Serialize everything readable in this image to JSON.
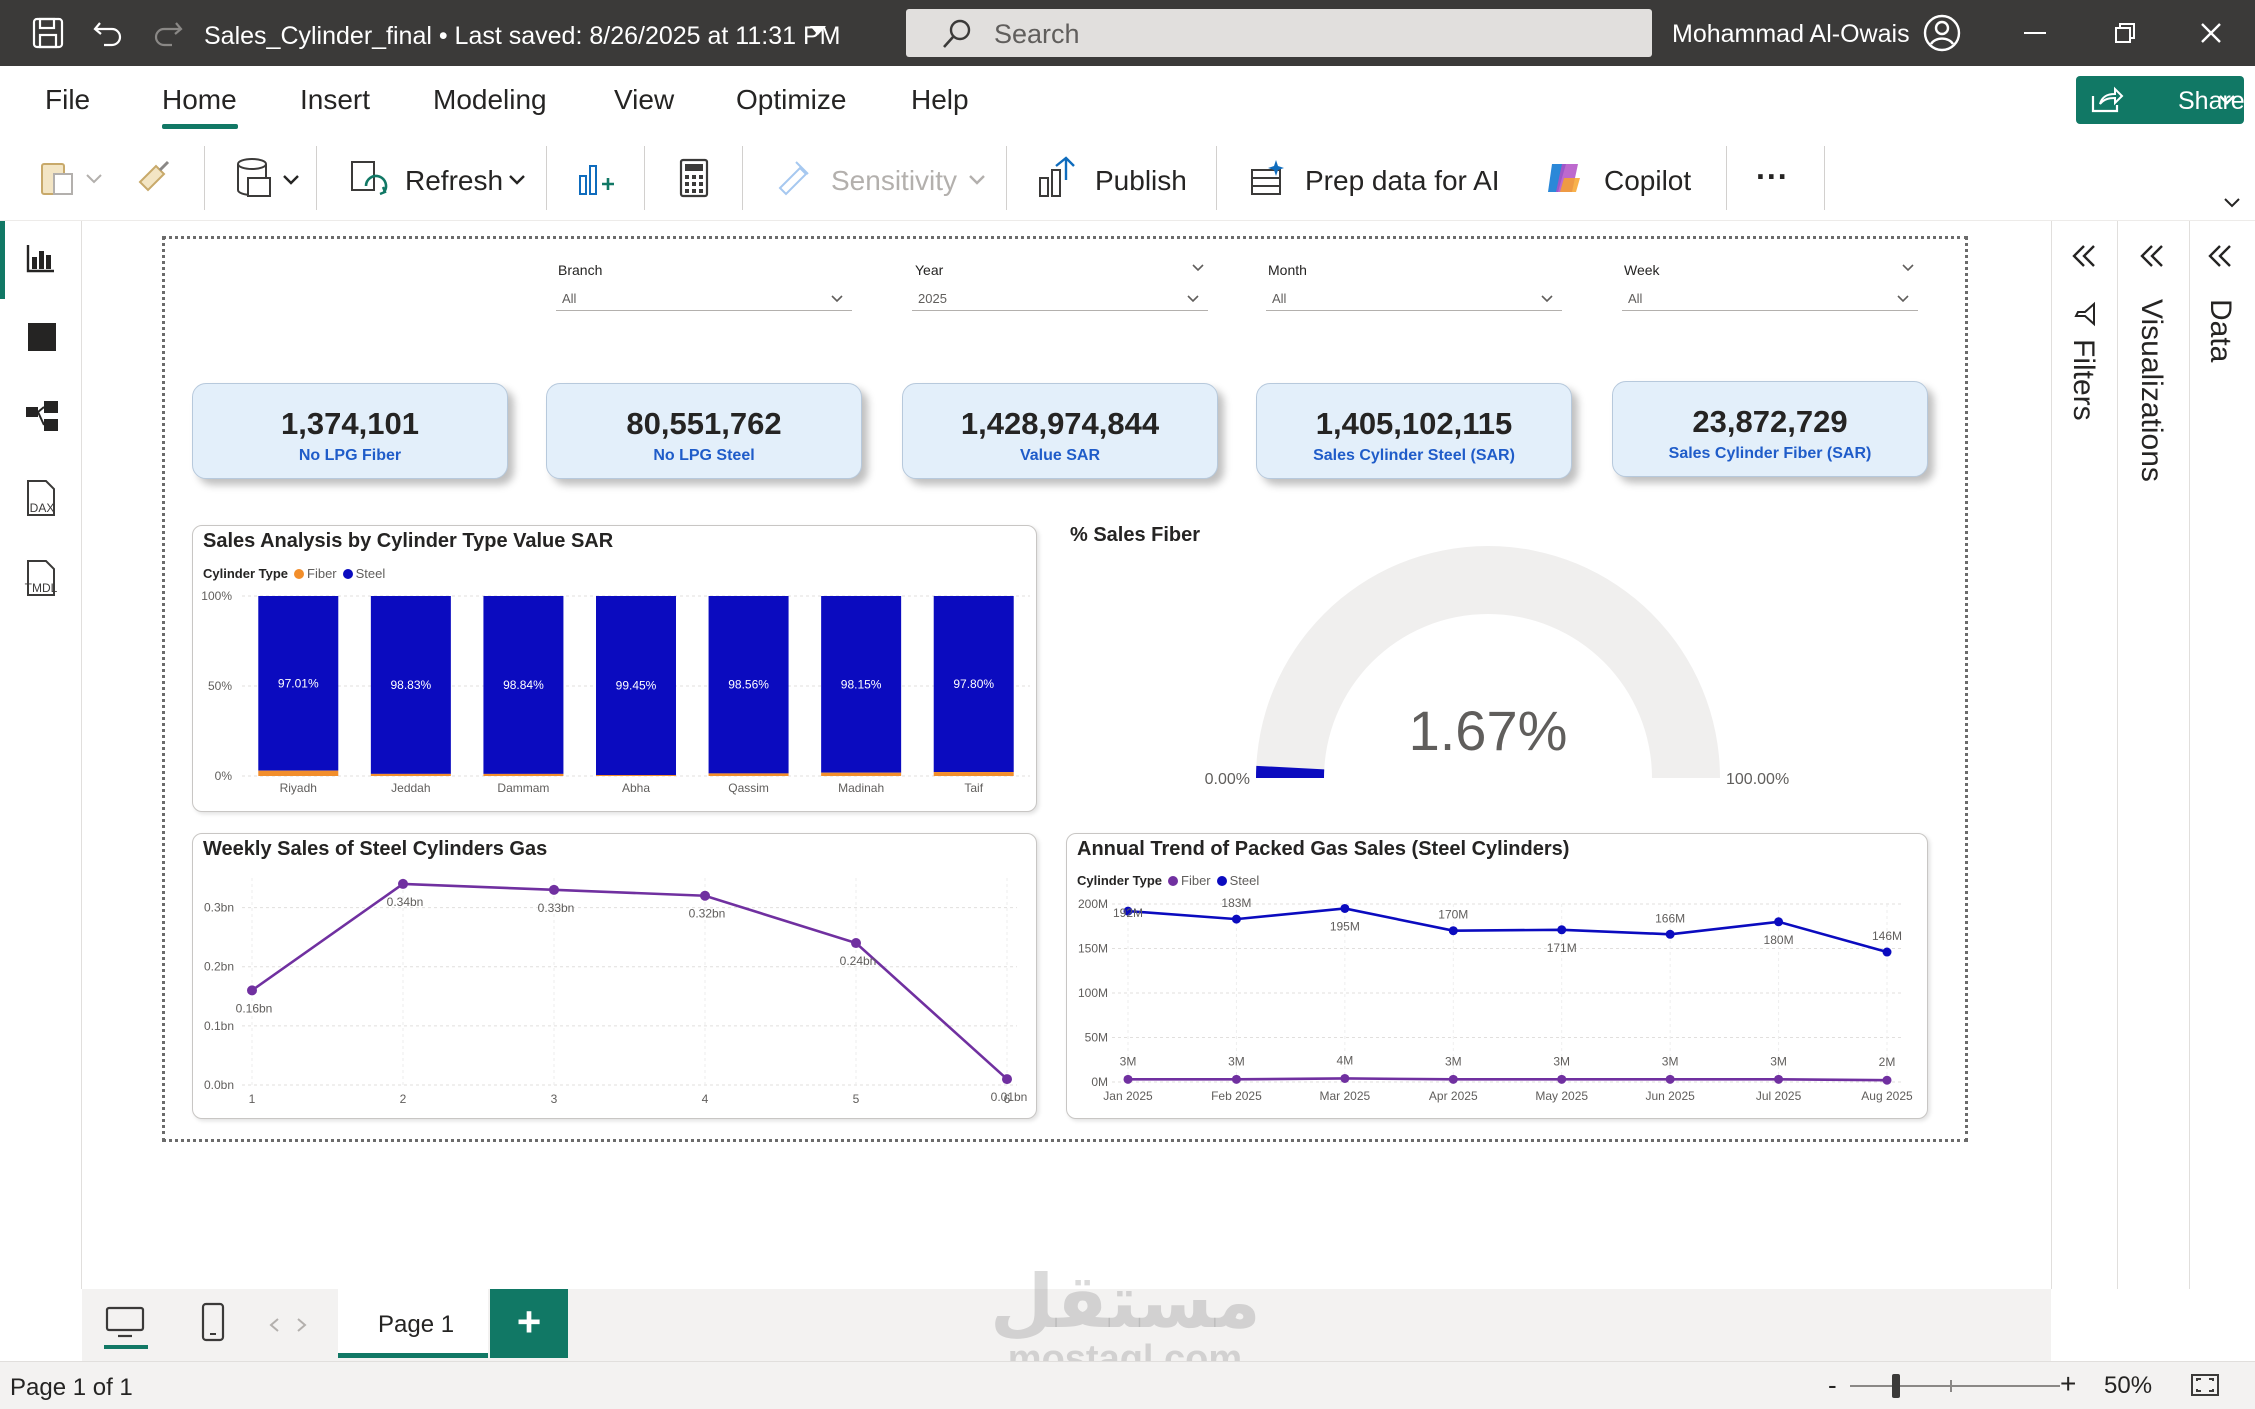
{
  "titlebar": {
    "doc_title": "Sales_Cylinder_final • Last saved: 8/26/2025 at 11:31 PM",
    "search_placeholder": "Search",
    "user_name": "Mohammad Al-Owais"
  },
  "menu": {
    "tabs": [
      "File",
      "Home",
      "Insert",
      "Modeling",
      "View",
      "Optimize",
      "Help"
    ],
    "active": "Home",
    "share_label": "Share"
  },
  "ribbon": {
    "refresh_label": "Refresh",
    "sensitivity_label": "Sensitivity",
    "publish_label": "Publish",
    "prep_label": "Prep data for AI",
    "copilot_label": "Copilot",
    "more_label": "..."
  },
  "leftnav": {
    "items": [
      "report-view",
      "table-view",
      "model-view",
      "DAX",
      "TMDL"
    ],
    "dax_label": "DAX",
    "tmdl_label": "TMDL"
  },
  "slicers": [
    {
      "label": "Branch",
      "value": "All"
    },
    {
      "label": "Year",
      "value": "2025"
    },
    {
      "label": "Month",
      "value": "All"
    },
    {
      "label": "Week",
      "value": "All"
    }
  ],
  "kpis": [
    {
      "value": "1,374,101",
      "label": "No LPG Fiber"
    },
    {
      "value": "80,551,762",
      "label": "No LPG Steel"
    },
    {
      "value": "1,428,974,844",
      "label": "Value SAR"
    },
    {
      "value": "1,405,102,115",
      "label": "Sales Cylinder Steel (SAR)"
    },
    {
      "value": "23,872,729",
      "label": "Sales Cylinder Fiber (SAR)"
    }
  ],
  "colors": {
    "accent": "#117865",
    "steel": "#0b0bbf",
    "fiber": "#f28e2b",
    "line_purple": "#7030a0",
    "kpi_bg": "#e3effa",
    "kpi_label": "#1f5cc9"
  },
  "chart_data": [
    {
      "type": "bar",
      "stacked": "100%",
      "title": "Sales Analysis by Cylinder Type Value SAR",
      "legend_title": "Cylinder Type",
      "legend_position": "top-left",
      "categories": [
        "Riyadh",
        "Jeddah",
        "Dammam",
        "Abha",
        "Qassim",
        "Madinah",
        "Taif"
      ],
      "series": [
        {
          "name": "Fiber",
          "values": [
            2.99,
            1.17,
            1.16,
            0.55,
            1.44,
            1.85,
            2.2
          ]
        },
        {
          "name": "Steel",
          "values": [
            97.01,
            98.83,
            98.84,
            99.45,
            98.56,
            98.15,
            97.8
          ]
        }
      ],
      "data_labels": [
        "97.01%",
        "98.83%",
        "98.84%",
        "99.45%",
        "98.56%",
        "98.15%",
        "97.80%"
      ],
      "y_ticks": [
        "0%",
        "50%",
        "100%"
      ],
      "ylim": [
        0,
        100
      ],
      "grid": true
    },
    {
      "type": "gauge",
      "title": "% Sales Fiber",
      "value": 1.67,
      "value_label": "1.67%",
      "min_label": "0.00%",
      "max_label": "100.00%",
      "range": [
        0,
        100
      ]
    },
    {
      "type": "line",
      "title": "Weekly Sales of Steel Cylinders Gas",
      "x": [
        "1",
        "2",
        "3",
        "4",
        "5",
        "6"
      ],
      "values": [
        0.16,
        0.34,
        0.33,
        0.32,
        0.24,
        0.01
      ],
      "data_labels": [
        "0.16bn",
        "0.34bn",
        "0.33bn",
        "0.32bn",
        "0.24bn",
        "0.01bn"
      ],
      "y_ticks": [
        "0.0bn",
        "0.1bn",
        "0.2bn",
        "0.3bn"
      ],
      "ylim": [
        0,
        0.35
      ],
      "grid": true
    },
    {
      "type": "line",
      "title": "Annual Trend of Packed Gas Sales (Steel Cylinders)",
      "legend_title": "Cylinder Type",
      "legend_position": "top-left",
      "categories": [
        "Jan 2025",
        "Feb 2025",
        "Mar 2025",
        "Apr 2025",
        "May 2025",
        "Jun 2025",
        "Jul 2025",
        "Aug 2025"
      ],
      "series": [
        {
          "name": "Fiber",
          "values": [
            3,
            3,
            4,
            3,
            3,
            3,
            3,
            2
          ],
          "labels": [
            "3M",
            "3M",
            "4M",
            "3M",
            "3M",
            "3M",
            "3M",
            "2M"
          ]
        },
        {
          "name": "Steel",
          "values": [
            192,
            183,
            195,
            170,
            171,
            166,
            180,
            146
          ],
          "labels": [
            "192M",
            "183M",
            "195M",
            "170M",
            "171M",
            "166M",
            "180M",
            "146M"
          ]
        }
      ],
      "y_ticks": [
        "0M",
        "50M",
        "100M",
        "150M",
        "200M"
      ],
      "ylim": [
        0,
        200
      ],
      "grid": true
    }
  ],
  "panes": {
    "filters": "Filters",
    "visualizations": "Visualizations",
    "data": "Data"
  },
  "pages": {
    "tabs": [
      "Page 1"
    ],
    "add": "+"
  },
  "status": {
    "page_info": "Page 1 of 1",
    "zoom": "50%",
    "zoom_minus": "-",
    "zoom_plus": "+"
  },
  "watermark": {
    "arabic": "مستقل",
    "latin": "mostaql.com"
  }
}
